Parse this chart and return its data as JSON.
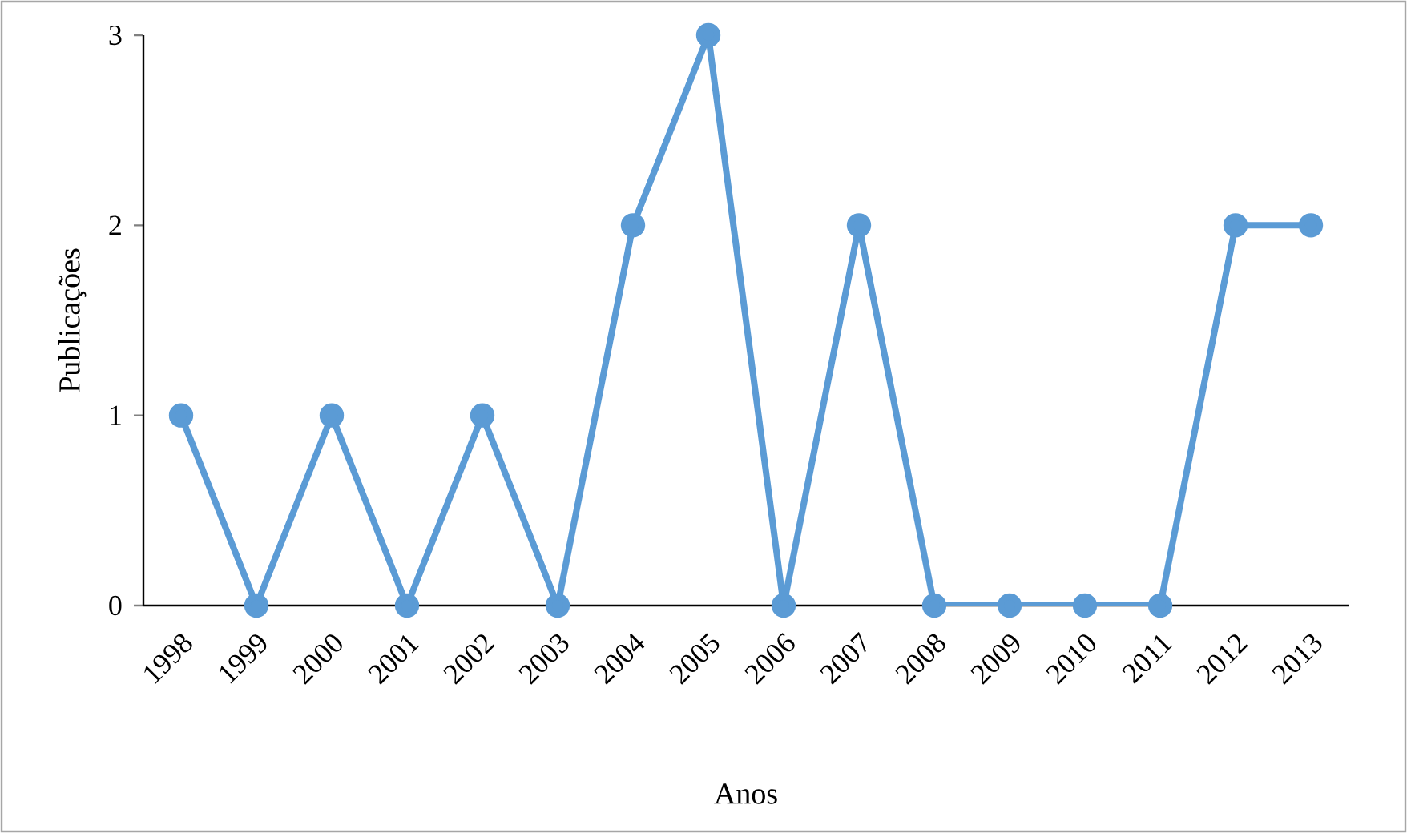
{
  "chart_data": {
    "type": "line",
    "xlabel": "Anos",
    "ylabel": "Publicações",
    "categories": [
      "1998",
      "1999",
      "2000",
      "2001",
      "2002",
      "2003",
      "2004",
      "2005",
      "2006",
      "2007",
      "2008",
      "2009",
      "2010",
      "2011",
      "2012",
      "2013"
    ],
    "values": [
      1,
      0,
      1,
      0,
      1,
      0,
      2,
      3,
      0,
      2,
      0,
      0,
      0,
      0,
      2,
      2
    ],
    "color": "#5b9bd5",
    "marker": "circle",
    "line_style": "solid",
    "ylim": [
      0,
      3
    ],
    "yticks": [
      0,
      1,
      2,
      3
    ],
    "grid": false
  }
}
